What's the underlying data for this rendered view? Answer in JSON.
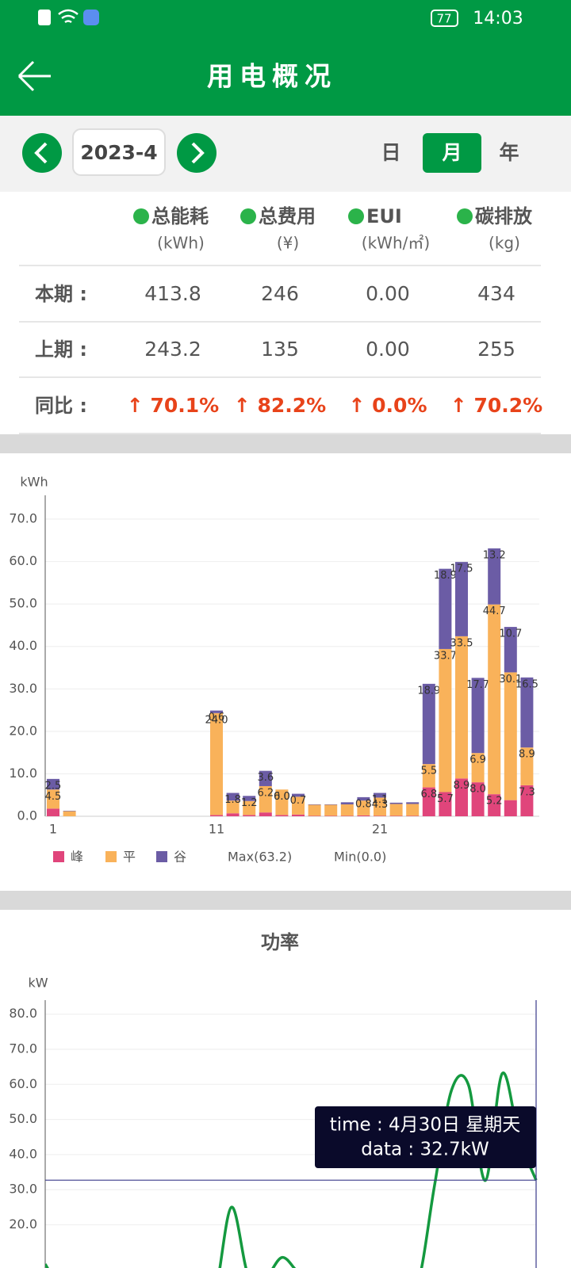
{
  "status_bar": {
    "battery": "77",
    "time": "14:03"
  },
  "header": {
    "title": "用电概况"
  },
  "toolbar": {
    "date": "2023-4",
    "periods": [
      "日",
      "月",
      "年"
    ],
    "selected": 1
  },
  "summary": {
    "columns": [
      {
        "name": "总能耗",
        "unit": "(kWh)"
      },
      {
        "name": "总费用",
        "unit": "(¥)"
      },
      {
        "name": "EUI",
        "unit": "(kWh/㎡)"
      },
      {
        "name": "碳排放",
        "unit": "(kg)"
      }
    ],
    "rows": [
      {
        "label": "本期 :",
        "values": [
          "413.8",
          "246",
          "0.00",
          "434"
        ]
      },
      {
        "label": "上期 :",
        "values": [
          "243.2",
          "135",
          "0.00",
          "255"
        ]
      },
      {
        "label": "同比 :",
        "values": [
          "↑ 70.1%",
          "↑ 82.2%",
          "↑ 0.0%",
          "↑ 70.2%"
        ]
      }
    ]
  },
  "chart_data": [
    {
      "type": "bar",
      "stacked": true,
      "y_unit": "kWh",
      "categories": [
        "1",
        null,
        null,
        null,
        null,
        null,
        null,
        null,
        null,
        null,
        "11",
        null,
        null,
        null,
        null,
        null,
        null,
        null,
        null,
        null,
        "21",
        null,
        null,
        null,
        null,
        null,
        null,
        null,
        null,
        null
      ],
      "series": [
        {
          "name": "峰",
          "color": "#e0457b",
          "values": [
            1.8,
            0,
            0,
            0,
            0,
            0,
            0,
            0,
            0,
            0,
            0.3,
            0.7,
            0.3,
            0.9,
            0.3,
            0.4,
            0.1,
            0.1,
            0.1,
            0.2,
            0.1,
            0.1,
            0.1,
            6.8,
            5.7,
            8.9,
            8.0,
            5.2,
            3.8,
            7.3
          ],
          "value_labels": [
            null,
            null,
            null,
            null,
            null,
            null,
            null,
            null,
            null,
            null,
            null,
            null,
            null,
            null,
            null,
            null,
            null,
            null,
            null,
            null,
            null,
            null,
            null,
            "6.8",
            "5.7",
            "8.9",
            "8.0",
            "5.2",
            null,
            "7.3"
          ]
        },
        {
          "name": "平",
          "color": "#f9b25a",
          "values": [
            4.5,
            1.2,
            0,
            0,
            0,
            0,
            0,
            0,
            0,
            0,
            24.0,
            3.0,
            3.3,
            6.2,
            6.0,
            4.2,
            2.6,
            2.6,
            2.7,
            3.5,
            4.3,
            2.8,
            2.8,
            5.5,
            33.7,
            33.5,
            6.9,
            44.7,
            30.1,
            8.9
          ],
          "value_labels": [
            "4.5",
            null,
            null,
            null,
            null,
            null,
            null,
            null,
            null,
            null,
            "24.0",
            null,
            null,
            "6.2",
            "6.0",
            null,
            null,
            null,
            null,
            null,
            "4.3",
            null,
            null,
            "5.5",
            "33.7",
            "33.5",
            "6.9",
            "44.7",
            "30.1",
            "8.9"
          ]
        },
        {
          "name": "谷",
          "color": "#6b5ca5",
          "values": [
            2.5,
            0.1,
            0,
            0,
            0,
            0,
            0,
            0,
            0,
            0,
            0.6,
            1.8,
            1.2,
            3.6,
            0.0,
            0.7,
            0.1,
            0.1,
            0.5,
            0.8,
            1.1,
            0.3,
            0.4,
            18.9,
            18.9,
            17.5,
            17.7,
            13.2,
            10.7,
            16.5
          ],
          "value_labels": [
            "2.5",
            null,
            null,
            null,
            null,
            null,
            null,
            null,
            null,
            null,
            "0.6",
            "1.8",
            "1.2",
            "3.6",
            "0.0",
            "0.7",
            null,
            null,
            null,
            "0.8",
            "1.1",
            null,
            null,
            "18.9",
            "18.9",
            "17.5",
            "17.7",
            "13.2",
            "10.7",
            "16.5"
          ]
        }
      ],
      "ylim": [
        0,
        75
      ],
      "yticks": [
        {
          "value": 0,
          "label": "0.0"
        },
        {
          "value": 10,
          "label": "10.0"
        },
        {
          "value": 20,
          "label": "20.0"
        },
        {
          "value": 30,
          "label": "30.0"
        },
        {
          "value": 40,
          "label": "40.0"
        },
        {
          "value": 50,
          "label": "50.0"
        },
        {
          "value": 60,
          "label": "60.0"
        },
        {
          "value": 70,
          "label": "70.0"
        }
      ],
      "grid": true,
      "annotations": [
        "Max(63.2)",
        "Min(0.0)"
      ]
    },
    {
      "type": "line",
      "title": "功率",
      "y_unit": "kW",
      "color": "#14993f",
      "x": [
        1,
        2,
        3,
        4,
        5,
        6,
        7,
        8,
        9,
        10,
        11,
        12,
        13,
        14,
        15,
        16,
        17,
        18,
        19,
        20,
        21,
        22,
        23,
        24,
        25,
        26,
        27,
        28,
        29,
        30
      ],
      "values": [
        8.8,
        1.2,
        0,
        0,
        0,
        0,
        0,
        0,
        0,
        0,
        0,
        25.0,
        5.5,
        4.8,
        10.7,
        6.3,
        5.3,
        2.8,
        2.8,
        3.3,
        4.5,
        5.5,
        3.2,
        31.2,
        58.3,
        59.9,
        32.6,
        63.1,
        44.6,
        32.7
      ],
      "xlim": [
        1,
        30
      ],
      "ylim": [
        0,
        84
      ],
      "yticks": [
        {
          "value": 20,
          "label": "20.0"
        },
        {
          "value": 30,
          "label": "30.0"
        },
        {
          "value": 40,
          "label": "40.0"
        },
        {
          "value": 50,
          "label": "50.0"
        },
        {
          "value": 60,
          "label": "60.0"
        },
        {
          "value": 70,
          "label": "70.0"
        },
        {
          "value": 80,
          "label": "80.0"
        }
      ],
      "grid": true,
      "tooltip": {
        "index": 29,
        "lines": [
          "time : 4月30日 星期天",
          "data : 32.7kW"
        ]
      }
    }
  ]
}
